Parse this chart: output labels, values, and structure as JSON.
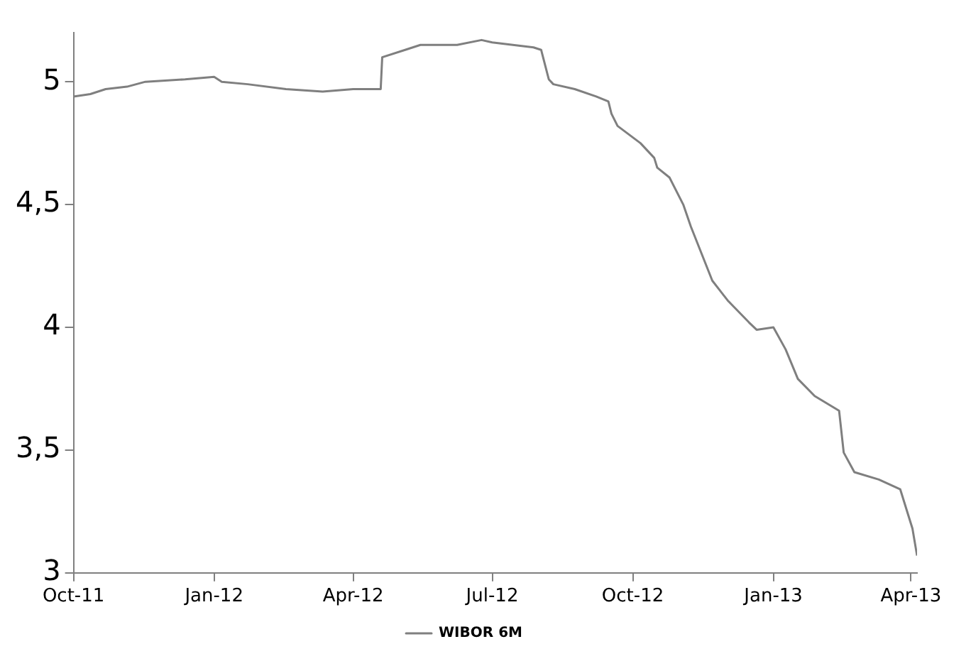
{
  "chart_data": {
    "type": "line",
    "x": [
      "2011-10-01",
      "2011-10-12",
      "2011-10-22",
      "2011-11-05",
      "2011-11-17",
      "2011-12-13",
      "2012-01-01",
      "2012-01-06",
      "2012-01-23",
      "2012-02-17",
      "2012-03-12",
      "2012-04-01",
      "2012-04-19",
      "2012-04-20",
      "2012-05-05",
      "2012-05-15",
      "2012-06-08",
      "2012-06-24",
      "2012-07-01",
      "2012-07-28",
      "2012-08-02",
      "2012-08-07",
      "2012-08-10",
      "2012-08-24",
      "2012-09-07",
      "2012-09-15",
      "2012-09-17",
      "2012-09-21",
      "2012-10-06",
      "2012-10-15",
      "2012-10-17",
      "2012-10-25",
      "2012-11-03",
      "2012-11-08",
      "2012-11-15",
      "2012-11-22",
      "2012-12-02",
      "2012-12-16",
      "2012-12-21",
      "2013-01-01",
      "2013-01-09",
      "2013-01-17",
      "2013-01-28",
      "2013-02-13",
      "2013-02-16",
      "2013-02-23",
      "2013-03-11",
      "2013-03-25",
      "2013-04-02",
      "2013-04-05"
    ],
    "series": [
      {
        "name": "WIBOR 6M",
        "color": "#7f7f7f",
        "values": [
          4.94,
          4.95,
          4.97,
          4.98,
          5.0,
          5.01,
          5.02,
          5.0,
          4.99,
          4.97,
          4.96,
          4.97,
          4.97,
          5.1,
          5.13,
          5.15,
          5.15,
          5.17,
          5.16,
          5.14,
          5.13,
          5.01,
          4.99,
          4.97,
          4.94,
          4.92,
          4.87,
          4.82,
          4.75,
          4.69,
          4.65,
          4.61,
          4.5,
          4.41,
          4.3,
          4.19,
          4.11,
          4.02,
          3.99,
          4.0,
          3.91,
          3.79,
          3.72,
          3.66,
          3.49,
          3.41,
          3.38,
          3.34,
          3.18,
          3.07
        ]
      }
    ],
    "xlim": [
      "2011-10-01",
      "2013-04-05"
    ],
    "xticks": [
      {
        "value": "2011-10-01",
        "label": "Oct-11"
      },
      {
        "value": "2012-01-01",
        "label": "Jan-12"
      },
      {
        "value": "2012-04-01",
        "label": "Apr-12"
      },
      {
        "value": "2012-07-01",
        "label": "Jul-12"
      },
      {
        "value": "2012-10-01",
        "label": "Oct-12"
      },
      {
        "value": "2013-01-01",
        "label": "Jan-13"
      },
      {
        "value": "2013-04-01",
        "label": "Apr-13"
      }
    ],
    "ylim": [
      3,
      5.2
    ],
    "yticks": [
      3,
      {
        "value": 3.5,
        "label": "3,5"
      },
      4,
      {
        "value": 4.5,
        "label": "4,5"
      },
      5
    ],
    "grid": false,
    "legend": "bottom",
    "marker": "none",
    "line_style": "solid"
  }
}
